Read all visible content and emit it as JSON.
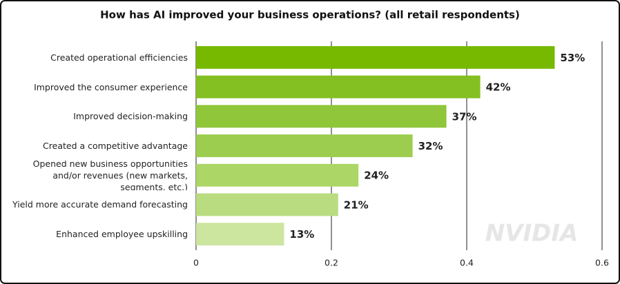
{
  "chart_data": {
    "type": "bar",
    "orientation": "horizontal",
    "title": "How has AI improved your business operations? (all retail respondents)",
    "categories": [
      "Created operational efficiencies",
      "Improved the consumer experience",
      "Improved decision-making",
      "Created a competitive advantage",
      "Opened new business opportunities and/or revenues (new markets, segments, etc.)",
      "Yield more accurate demand forecasting",
      "Enhanced employee upskilling"
    ],
    "values": [
      0.53,
      0.42,
      0.37,
      0.32,
      0.24,
      0.21,
      0.13
    ],
    "value_labels": [
      "53%",
      "42%",
      "37%",
      "32%",
      "24%",
      "21%",
      "13%"
    ],
    "colors": [
      "#76b900",
      "#84c022",
      "#8fc63a",
      "#9ccd4e",
      "#acd666",
      "#b9dc80",
      "#cce59f"
    ],
    "xlim": [
      0,
      0.6
    ],
    "xticks": [
      0,
      0.2,
      0.4,
      0.6
    ],
    "grid": true,
    "watermark": "NVIDIA"
  }
}
